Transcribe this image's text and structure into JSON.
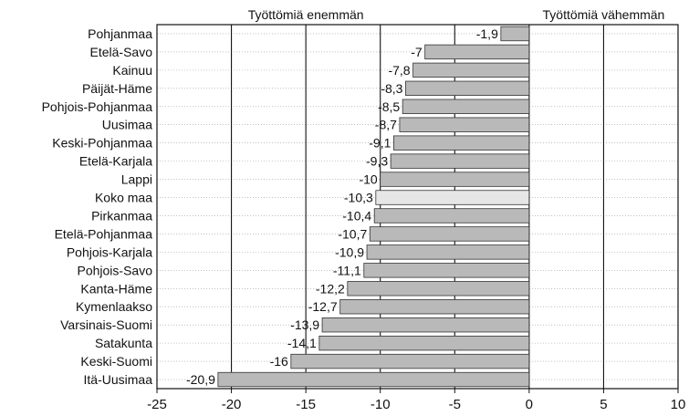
{
  "chart_data": {
    "type": "bar",
    "orientation": "horizontal",
    "header_left": "Työttömiä enemmän",
    "header_right": "Työttömiä vähemmän",
    "categories": [
      "Pohjanmaa",
      "Etelä-Savo",
      "Kainuu",
      "Päijät-Häme",
      "Pohjois-Pohjanmaa",
      "Uusimaa",
      "Keski-Pohjanmaa",
      "Etelä-Karjala",
      "Lappi",
      "Koko maa",
      "Pirkanmaa",
      "Etelä-Pohjanmaa",
      "Pohjois-Karjala",
      "Pohjois-Savo",
      "Kanta-Häme",
      "Kymenlaakso",
      "Varsinais-Suomi",
      "Satakunta",
      "Keski-Suomi",
      "Itä-Uusimaa"
    ],
    "values": [
      -1.9,
      -7,
      -7.8,
      -8.3,
      -8.5,
      -8.7,
      -9.1,
      -9.3,
      -10,
      -10.3,
      -10.4,
      -10.7,
      -10.9,
      -11.1,
      -12.2,
      -12.7,
      -13.9,
      -14.1,
      -16,
      -20.9
    ],
    "value_labels": [
      "-1,9",
      "-7",
      "-7,8",
      "-8,3",
      "-8,5",
      "-8,7",
      "-9,1",
      "-9,3",
      "-10",
      "-10,3",
      "-10,4",
      "-10,7",
      "-10,9",
      "-11,1",
      "-12,2",
      "-12,7",
      "-13,9",
      "-14,1",
      "-16",
      "-20,9"
    ],
    "highlight": "Koko maa",
    "xlim": [
      -25,
      10
    ],
    "xticks": [
      -25,
      -20,
      -15,
      -10,
      -5,
      0,
      5,
      10
    ],
    "xtick_labels": [
      "-25",
      "-20",
      "-15",
      "-10",
      "-5",
      "0",
      "5",
      "10"
    ],
    "grid": "vertical major lines",
    "colors": {
      "bar": "#b9b9b9",
      "highlight_bar": "#e6e6e6",
      "line": "#111111"
    }
  }
}
